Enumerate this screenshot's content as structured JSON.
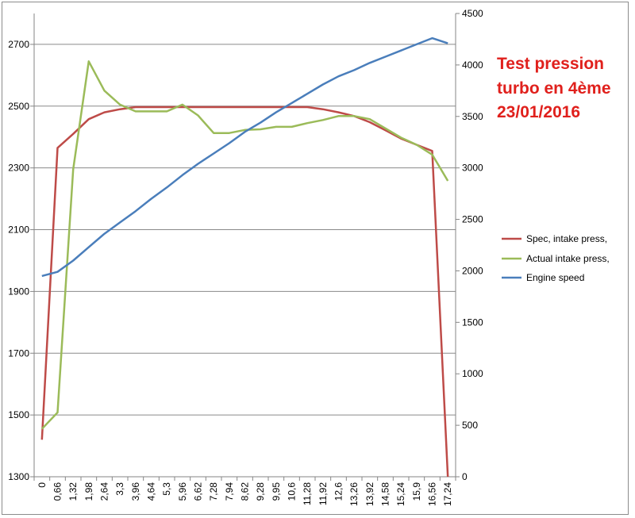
{
  "chart_data": {
    "type": "line",
    "title": "",
    "xlabel": "",
    "ylabel": "",
    "y2label": "",
    "annotation": [
      "Test pression",
      "turbo en 4ème",
      "23/01/2016"
    ],
    "x": [
      "0",
      "0,66",
      "1,32",
      "1,98",
      "2,64",
      "3,3",
      "3,96",
      "4,64",
      "5,3",
      "5,96",
      "6,62",
      "7,28",
      "7,94",
      "8,62",
      "9,28",
      "9,95",
      "10,6",
      "11,28",
      "11,92",
      "12,6",
      "13,26",
      "13,92",
      "14,58",
      "15,24",
      "15,9",
      "16,56",
      "17,24"
    ],
    "ylim": [
      1300,
      2800
    ],
    "yticks": [
      1300,
      1500,
      1700,
      1900,
      2100,
      2300,
      2500,
      2700
    ],
    "y2lim": [
      0,
      4500
    ],
    "y2ticks": [
      0,
      500,
      1000,
      1500,
      2000,
      2500,
      3000,
      3500,
      4000,
      4500
    ],
    "grid": true,
    "legend_position": "right",
    "series": [
      {
        "name": "Spec, intake press,",
        "axis": "left",
        "color": "#be4b48",
        "values": [
          1420,
          2365,
          2410,
          2458,
          2480,
          2490,
          2497,
          2497,
          2497,
          2497,
          2497,
          2497,
          2497,
          2497,
          2497,
          2497,
          2497,
          2497,
          2490,
          2480,
          2468,
          2448,
          2422,
          2395,
          2375,
          2355,
          1300
        ]
      },
      {
        "name": "Actual intake press,",
        "axis": "left",
        "color": "#9bbb59",
        "values": [
          1455,
          1508,
          2295,
          2645,
          2550,
          2505,
          2483,
          2483,
          2483,
          2505,
          2470,
          2413,
          2413,
          2423,
          2425,
          2433,
          2433,
          2445,
          2455,
          2468,
          2468,
          2458,
          2428,
          2398,
          2375,
          2343,
          2258
        ]
      },
      {
        "name": "Engine speed",
        "axis": "right",
        "color": "#4a7ebb",
        "values": [
          1950,
          1990,
          2100,
          2230,
          2360,
          2470,
          2580,
          2700,
          2810,
          2930,
          3040,
          3140,
          3240,
          3350,
          3440,
          3540,
          3630,
          3720,
          3810,
          3890,
          3950,
          4020,
          4080,
          4140,
          4200,
          4260,
          4210
        ]
      }
    ]
  }
}
